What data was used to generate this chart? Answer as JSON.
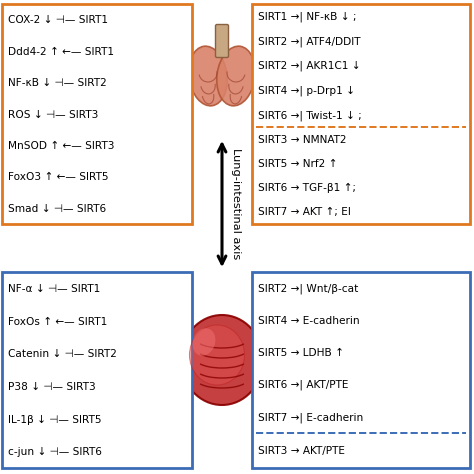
{
  "bg_color": "#ffffff",
  "orange_color": "#E07820",
  "blue_color": "#3B6CB5",
  "title": "Lung-intestinal axis",
  "tl_lines": [
    "COX-2 ↓ ⊣— SIRT1",
    "Ddd4-2 ↑ ←— SIRT1",
    "NF-κB ↓ ⊣— SIRT2",
    "ROS ↓ ⊣— SIRT3",
    "MnSOD ↑ ←— SIRT3",
    "FoxO3 ↑ ←— SIRT5",
    "Smad ↓ ⊣— SIRT6"
  ],
  "tr_top_lines": [
    "SIRT1 →| NF-κB ↓ ;",
    "SIRT2 →| ATF4/DDIT",
    "SIRT2 →| AKR1C1 ↓",
    "SIRT4 →| p-Drp1 ↓",
    "SIRT6 →| Twist-1 ↓ ;"
  ],
  "tr_bot_lines": [
    "SIRT3 → NMNAT2",
    "SIRT5 → Nrf2 ↑",
    "SIRT6 → TGF-β1 ↑;",
    "SIRT7 → AKT ↑; EI"
  ],
  "bl_lines": [
    "NF-α ↓ ⊣— SIRT1",
    "FoxOs ↑ ←— SIRT1",
    "Catenin ↓ ⊣— SIRT2",
    "P38 ↓ ⊣— SIRT3",
    "IL-1β ↓ ⊣— SIRT5",
    "c-jun ↓ ⊣— SIRT6"
  ],
  "br_top_lines": [
    "SIRT2 →| Wnt/β-cat",
    "SIRT4 → E-cadherin",
    "SIRT5 → LDHB ↑",
    "SIRT6 →| AKT/PTE",
    "SIRT7 →| E-cadherin"
  ],
  "br_bot_lines": [
    "SIRT3 → AKT/PTE"
  ]
}
